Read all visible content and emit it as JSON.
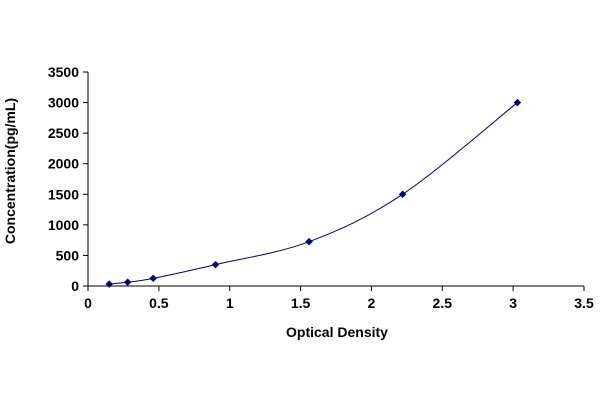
{
  "chart_data": {
    "type": "scatter",
    "title": "",
    "xlabel": "Optical Density",
    "ylabel": "Concentration(pg/mL)",
    "xlim": [
      0,
      3.5
    ],
    "ylim": [
      0,
      3500
    ],
    "xticks": [
      0,
      0.5,
      1,
      1.5,
      2,
      2.5,
      3,
      3.5
    ],
    "xtick_labels": [
      "0",
      "0.5",
      "1",
      "1.5",
      "2",
      "2.5",
      "3",
      "3.5"
    ],
    "yticks": [
      0,
      500,
      1000,
      1500,
      2000,
      2500,
      3000,
      3500
    ],
    "ytick_labels": [
      "0",
      "500",
      "1000",
      "1500",
      "2000",
      "2500",
      "3000",
      "3500"
    ],
    "grid": false,
    "legend": "none",
    "series": [
      {
        "marker": "diamond",
        "line": "smooth",
        "color": "#000080",
        "points": [
          {
            "x": 0.15,
            "y": 31.25
          },
          {
            "x": 0.28,
            "y": 62.5
          },
          {
            "x": 0.46,
            "y": 125
          },
          {
            "x": 0.9,
            "y": 350
          },
          {
            "x": 1.56,
            "y": 725
          },
          {
            "x": 2.22,
            "y": 1500
          },
          {
            "x": 3.03,
            "y": 3000
          }
        ]
      }
    ]
  }
}
